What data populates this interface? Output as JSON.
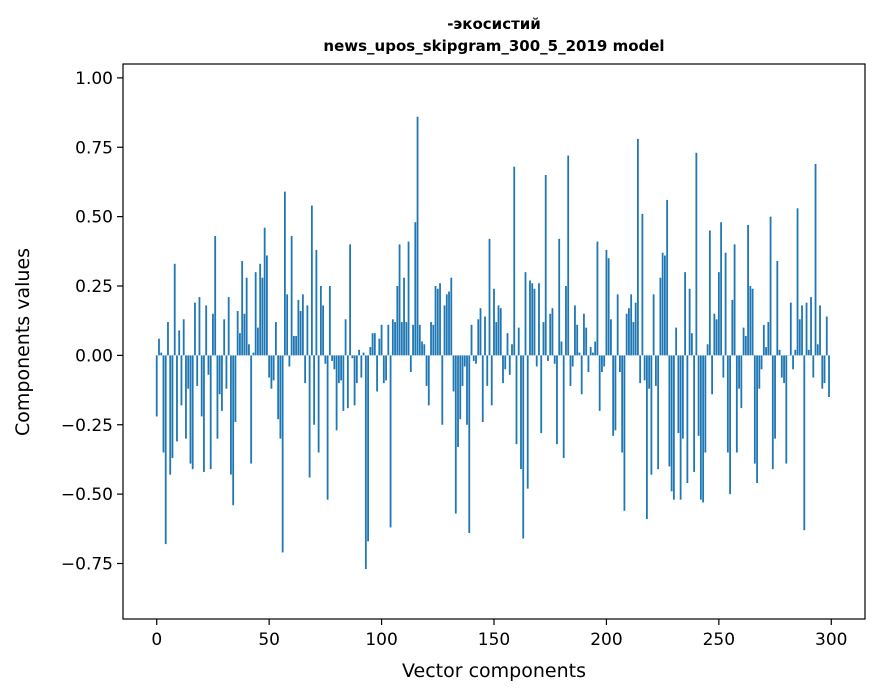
{
  "chart_data": {
    "type": "bar",
    "title_line1": "-экосистий",
    "title_line2": "news_upos_skipgram_300_5_2019 model",
    "xlabel": "Vector components",
    "ylabel": "Components values",
    "xlim": [
      -15,
      315
    ],
    "ylim": [
      -0.95,
      1.05
    ],
    "xticks": [
      0,
      50,
      100,
      150,
      200,
      250,
      300
    ],
    "xtick_labels": [
      "0",
      "50",
      "100",
      "150",
      "200",
      "250",
      "300"
    ],
    "yticks": [
      -0.75,
      -0.5,
      -0.25,
      0.0,
      0.25,
      0.5,
      0.75,
      1.0
    ],
    "ytick_labels": [
      "−0.75",
      "−0.50",
      "−0.25",
      "0.00",
      "0.25",
      "0.50",
      "0.75",
      "1.00"
    ],
    "bar_color": "#1f77b4",
    "values": [
      -0.22,
      0.06,
      0.01,
      -0.35,
      -0.68,
      0.12,
      -0.43,
      -0.37,
      0.33,
      -0.31,
      0.09,
      -0.18,
      0.13,
      -0.3,
      -0.12,
      -0.39,
      -0.41,
      0.19,
      -0.11,
      0.21,
      -0.22,
      -0.42,
      0.18,
      -0.07,
      -0.41,
      0.15,
      0.43,
      -0.3,
      -0.14,
      -0.2,
      0.13,
      -0.12,
      0.21,
      -0.43,
      -0.54,
      -0.24,
      0.16,
      0.08,
      0.34,
      0.15,
      0.28,
      0.04,
      -0.39,
      0.01,
      0.3,
      0.1,
      0.33,
      0.28,
      0.46,
      0.36,
      -0.08,
      -0.12,
      -0.09,
      0.12,
      -0.23,
      -0.3,
      -0.71,
      0.59,
      0.22,
      -0.04,
      0.43,
      0.07,
      0.07,
      0.2,
      0.16,
      0.22,
      -0.1,
      0.18,
      -0.44,
      0.54,
      -0.25,
      0.38,
      -0.35,
      0.25,
      0.18,
      -0.03,
      -0.52,
      0.25,
      -0.02,
      -0.05,
      -0.27,
      -0.1,
      -0.09,
      -0.2,
      0.13,
      -0.19,
      0.4,
      -0.01,
      -0.18,
      -0.1,
      0.02,
      -0.08,
      0.01,
      -0.77,
      -0.67,
      0.03,
      0.08,
      0.08,
      -0.13,
      0.06,
      0.11,
      -0.1,
      -0.09,
      0.11,
      -0.62,
      0.13,
      0.12,
      0.25,
      0.4,
      0.12,
      0.28,
      0.12,
      0.41,
      -0.06,
      0.11,
      0.48,
      0.86,
      0.11,
      0.05,
      0.04,
      -0.11,
      -0.18,
      0.12,
      0.11,
      0.25,
      0.24,
      0.26,
      -0.25,
      0.18,
      0.22,
      0.23,
      0.28,
      -0.13,
      -0.57,
      -0.33,
      -0.23,
      -0.11,
      -0.04,
      -0.25,
      -0.64,
      0.11,
      -0.02,
      -0.03,
      0.13,
      0.17,
      -0.24,
      0.14,
      -0.11,
      0.42,
      -0.18,
      0.24,
      0.12,
      0.18,
      0.17,
      -0.1,
      -0.05,
      0.08,
      -0.07,
      0.04,
      0.68,
      -0.32,
      0.1,
      -0.41,
      -0.66,
      0.3,
      -0.48,
      0.27,
      0.26,
      0.24,
      -0.04,
      0.26,
      -0.28,
      0.12,
      0.65,
      -0.02,
      0.15,
      0.17,
      -0.03,
      -0.32,
      0.42,
      0.05,
      -0.37,
      0.25,
      0.72,
      -0.11,
      -0.04,
      0.18,
      0.11,
      0.01,
      -0.14,
      0.15,
      0.1,
      -0.06,
      0.03,
      0.01,
      0.05,
      0.41,
      -0.2,
      -0.06,
      -0.04,
      0.38,
      0.35,
      0.13,
      -0.29,
      -0.27,
      0.22,
      -0.06,
      -0.35,
      -0.56,
      0.15,
      0.17,
      0.22,
      0.12,
      0.19,
      0.78,
      -0.1,
      0.51,
      -0.09,
      -0.59,
      -0.12,
      -0.43,
      0.22,
      -0.11,
      -0.41,
      0.28,
      0.37,
      0.36,
      0.56,
      -0.4,
      -0.49,
      -0.52,
      0.1,
      -0.28,
      -0.52,
      -0.3,
      0.3,
      -0.46,
      0.24,
      0.08,
      -0.42,
      0.73,
      -0.29,
      -0.52,
      -0.53,
      -0.35,
      0.04,
      0.45,
      -0.14,
      0.15,
      0.13,
      0.3,
      0.48,
      -0.08,
      0.37,
      -0.35,
      -0.5,
      0.2,
      0.4,
      -0.35,
      -0.12,
      -0.19,
      0.1,
      0.07,
      0.47,
      0.25,
      0.24,
      -0.39,
      -0.46,
      -0.12,
      -0.05,
      0.11,
      0.03,
      0.12,
      0.5,
      -0.41,
      -0.3,
      0.34,
      0.02,
      -0.08,
      -0.1,
      -0.39,
      0.0,
      0.19,
      -0.05,
      0.02,
      0.53,
      0.13,
      0.18,
      -0.63,
      0.19,
      0.02,
      0.21,
      -0.08,
      0.69,
      0.04,
      0.18,
      -0.12,
      -0.1,
      0.14,
      -0.15
    ]
  }
}
